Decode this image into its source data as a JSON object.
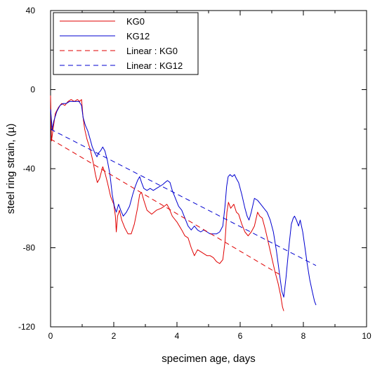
{
  "chart_data": {
    "type": "line",
    "xlabel": "specimen age, days",
    "ylabel": "steel ring strain, (µ)",
    "xlim": [
      0,
      10
    ],
    "ylim": [
      -120,
      40
    ],
    "x_ticks": [
      0,
      2,
      4,
      6,
      8,
      10
    ],
    "y_ticks": [
      40,
      0,
      -40,
      -80,
      -120
    ],
    "x_minor_step": 1,
    "y_minor_step": 20,
    "grid": false,
    "legend_position": "top-left",
    "series": [
      {
        "name": "KG0",
        "style": "solid",
        "color": "#e00000",
        "points": [
          [
            0,
            -3
          ],
          [
            0.03,
            -26
          ],
          [
            0.08,
            -20
          ],
          [
            0.15,
            -12
          ],
          [
            0.25,
            -9
          ],
          [
            0.35,
            -7
          ],
          [
            0.45,
            -8
          ],
          [
            0.55,
            -6
          ],
          [
            0.65,
            -5
          ],
          [
            0.75,
            -6
          ],
          [
            0.85,
            -5
          ],
          [
            0.92,
            -6
          ],
          [
            0.98,
            -5
          ],
          [
            1.03,
            -14
          ],
          [
            1.08,
            -20
          ],
          [
            1.15,
            -25
          ],
          [
            1.25,
            -30
          ],
          [
            1.35,
            -37
          ],
          [
            1.42,
            -43
          ],
          [
            1.48,
            -47
          ],
          [
            1.55,
            -45
          ],
          [
            1.6,
            -42
          ],
          [
            1.65,
            -39
          ],
          [
            1.72,
            -42
          ],
          [
            1.8,
            -47
          ],
          [
            1.9,
            -54
          ],
          [
            2.0,
            -58
          ],
          [
            2.05,
            -64
          ],
          [
            2.08,
            -72
          ],
          [
            2.12,
            -64
          ],
          [
            2.18,
            -61
          ],
          [
            2.25,
            -66
          ],
          [
            2.35,
            -70
          ],
          [
            2.45,
            -73
          ],
          [
            2.55,
            -73
          ],
          [
            2.65,
            -68
          ],
          [
            2.75,
            -60
          ],
          [
            2.82,
            -53
          ],
          [
            2.88,
            -52
          ],
          [
            2.95,
            -56
          ],
          [
            3.05,
            -61
          ],
          [
            3.2,
            -63
          ],
          [
            3.35,
            -61
          ],
          [
            3.5,
            -60
          ],
          [
            3.6,
            -59
          ],
          [
            3.68,
            -58
          ],
          [
            3.75,
            -60
          ],
          [
            3.85,
            -64
          ],
          [
            4.0,
            -67
          ],
          [
            4.15,
            -71
          ],
          [
            4.25,
            -74
          ],
          [
            4.35,
            -75
          ],
          [
            4.45,
            -80
          ],
          [
            4.55,
            -84
          ],
          [
            4.65,
            -81
          ],
          [
            4.75,
            -82
          ],
          [
            4.85,
            -83
          ],
          [
            4.95,
            -84
          ],
          [
            5.05,
            -84
          ],
          [
            5.15,
            -85
          ],
          [
            5.25,
            -87
          ],
          [
            5.35,
            -88
          ],
          [
            5.45,
            -86
          ],
          [
            5.52,
            -77
          ],
          [
            5.58,
            -62
          ],
          [
            5.63,
            -57
          ],
          [
            5.7,
            -60
          ],
          [
            5.8,
            -58
          ],
          [
            5.88,
            -62
          ],
          [
            5.95,
            -63
          ],
          [
            6.05,
            -68
          ],
          [
            6.15,
            -72
          ],
          [
            6.25,
            -74
          ],
          [
            6.35,
            -72
          ],
          [
            6.45,
            -69
          ],
          [
            6.55,
            -62
          ],
          [
            6.62,
            -64
          ],
          [
            6.7,
            -65
          ],
          [
            6.8,
            -71
          ],
          [
            6.9,
            -78
          ],
          [
            7.0,
            -85
          ],
          [
            7.1,
            -92
          ],
          [
            7.2,
            -98
          ],
          [
            7.28,
            -104
          ],
          [
            7.34,
            -110
          ],
          [
            7.38,
            -112
          ]
        ]
      },
      {
        "name": "KG12",
        "style": "solid",
        "color": "#0000d0",
        "points": [
          [
            0,
            -10
          ],
          [
            0.05,
            -20
          ],
          [
            0.1,
            -16
          ],
          [
            0.2,
            -11
          ],
          [
            0.3,
            -8
          ],
          [
            0.4,
            -7
          ],
          [
            0.5,
            -7
          ],
          [
            0.6,
            -6
          ],
          [
            0.7,
            -6
          ],
          [
            0.8,
            -6
          ],
          [
            0.9,
            -6
          ],
          [
            0.98,
            -8
          ],
          [
            1.03,
            -14
          ],
          [
            1.1,
            -18
          ],
          [
            1.18,
            -21
          ],
          [
            1.25,
            -25
          ],
          [
            1.32,
            -29
          ],
          [
            1.4,
            -32
          ],
          [
            1.47,
            -34
          ],
          [
            1.52,
            -32
          ],
          [
            1.58,
            -31
          ],
          [
            1.65,
            -29
          ],
          [
            1.72,
            -31
          ],
          [
            1.8,
            -36
          ],
          [
            1.88,
            -43
          ],
          [
            1.95,
            -53
          ],
          [
            2.02,
            -59
          ],
          [
            2.08,
            -62
          ],
          [
            2.15,
            -58
          ],
          [
            2.22,
            -61
          ],
          [
            2.3,
            -64
          ],
          [
            2.4,
            -62
          ],
          [
            2.5,
            -59
          ],
          [
            2.6,
            -53
          ],
          [
            2.68,
            -49
          ],
          [
            2.75,
            -46
          ],
          [
            2.82,
            -44
          ],
          [
            2.88,
            -47
          ],
          [
            2.95,
            -50
          ],
          [
            3.05,
            -51
          ],
          [
            3.15,
            -50
          ],
          [
            3.25,
            -51
          ],
          [
            3.35,
            -50
          ],
          [
            3.45,
            -49
          ],
          [
            3.55,
            -48
          ],
          [
            3.62,
            -47
          ],
          [
            3.7,
            -46
          ],
          [
            3.78,
            -47
          ],
          [
            3.85,
            -51
          ],
          [
            3.95,
            -55
          ],
          [
            4.05,
            -59
          ],
          [
            4.15,
            -61
          ],
          [
            4.25,
            -65
          ],
          [
            4.35,
            -69
          ],
          [
            4.45,
            -71
          ],
          [
            4.55,
            -69
          ],
          [
            4.65,
            -71
          ],
          [
            4.75,
            -72
          ],
          [
            4.85,
            -71
          ],
          [
            4.95,
            -72
          ],
          [
            5.05,
            -73
          ],
          [
            5.15,
            -73
          ],
          [
            5.25,
            -73
          ],
          [
            5.35,
            -72
          ],
          [
            5.45,
            -69
          ],
          [
            5.52,
            -59
          ],
          [
            5.57,
            -49
          ],
          [
            5.62,
            -44
          ],
          [
            5.68,
            -43
          ],
          [
            5.75,
            -44
          ],
          [
            5.82,
            -43
          ],
          [
            5.88,
            -45
          ],
          [
            5.95,
            -47
          ],
          [
            6.05,
            -53
          ],
          [
            6.15,
            -60
          ],
          [
            6.22,
            -64
          ],
          [
            6.28,
            -66
          ],
          [
            6.35,
            -62
          ],
          [
            6.45,
            -55
          ],
          [
            6.55,
            -56
          ],
          [
            6.65,
            -58
          ],
          [
            6.75,
            -60
          ],
          [
            6.85,
            -62
          ],
          [
            6.95,
            -66
          ],
          [
            7.05,
            -72
          ],
          [
            7.15,
            -82
          ],
          [
            7.25,
            -94
          ],
          [
            7.32,
            -102
          ],
          [
            7.38,
            -105
          ],
          [
            7.45,
            -95
          ],
          [
            7.55,
            -78
          ],
          [
            7.62,
            -68
          ],
          [
            7.68,
            -65
          ],
          [
            7.72,
            -64
          ],
          [
            7.78,
            -66
          ],
          [
            7.85,
            -69
          ],
          [
            7.9,
            -66
          ],
          [
            7.98,
            -72
          ],
          [
            8.05,
            -80
          ],
          [
            8.12,
            -88
          ],
          [
            8.2,
            -96
          ],
          [
            8.28,
            -102
          ],
          [
            8.35,
            -107
          ],
          [
            8.4,
            -109
          ]
        ]
      },
      {
        "name": "Linear : KG0",
        "style": "dashed",
        "color": "#e00000",
        "points": [
          [
            0,
            -25
          ],
          [
            7.3,
            -94
          ]
        ]
      },
      {
        "name": "Linear : KG12",
        "style": "dashed",
        "color": "#0000d0",
        "points": [
          [
            0,
            -20
          ],
          [
            8.4,
            -89
          ]
        ]
      }
    ]
  }
}
